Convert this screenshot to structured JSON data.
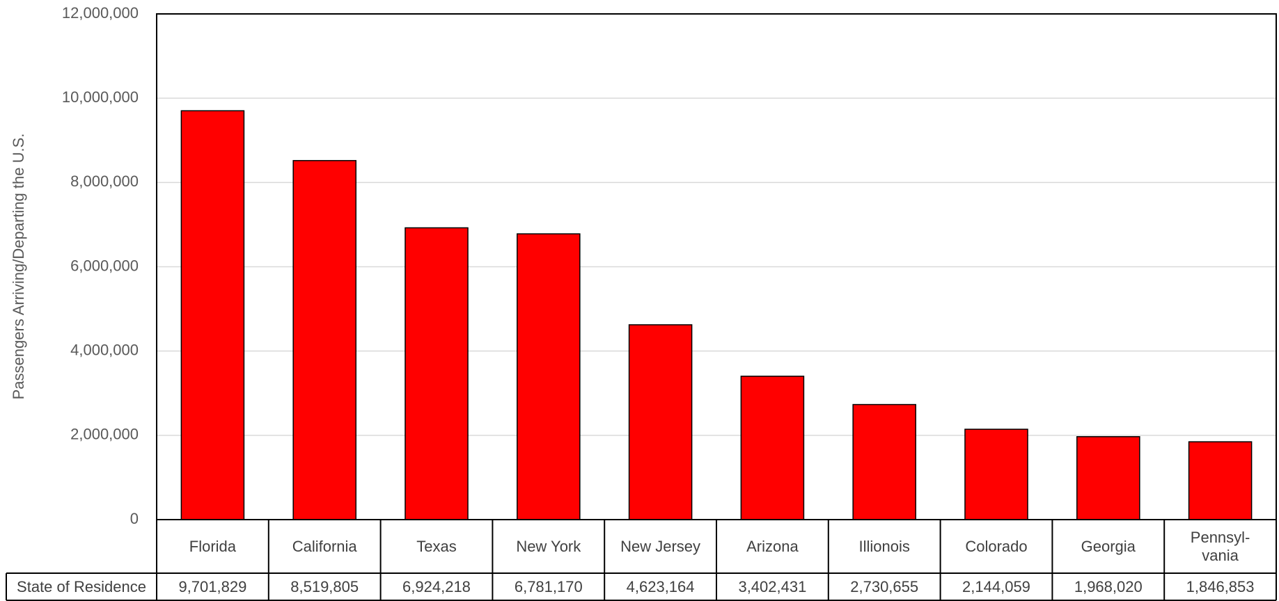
{
  "chart_data": {
    "type": "bar",
    "ylabel": "Passengers Arriving/Departing the U.S.",
    "table_header": "State of Residence",
    "categories": [
      "Florida",
      "California",
      "Texas",
      "New York",
      "New Jersey",
      "Arizona",
      "Illionois",
      "Colorado",
      "Georgia",
      "Pennsyl-\nvania"
    ],
    "values": [
      9701829,
      8519805,
      6924218,
      6781170,
      4623164,
      3402431,
      2730655,
      2144059,
      1968020,
      1846853
    ],
    "value_labels": [
      "9,701,829",
      "8,519,805",
      "6,924,218",
      "6,781,170",
      "4,623,164",
      "3,402,431",
      "2,730,655",
      "2,144,059",
      "1,968,020",
      "1,846,853"
    ],
    "color": "#ff0000",
    "ylim": [
      0,
      12000000
    ],
    "yticks": [
      0,
      {
        "value": 2000000,
        "label": "2,000,000"
      },
      {
        "value": 4000000,
        "label": "4,000,000"
      },
      {
        "value": 6000000,
        "label": "6,000,000"
      },
      {
        "value": 8000000,
        "label": "8,000,000"
      },
      {
        "value": 10000000,
        "label": "10,000,000"
      },
      {
        "value": 12000000,
        "label": "12,000,000"
      }
    ],
    "grid": true
  }
}
